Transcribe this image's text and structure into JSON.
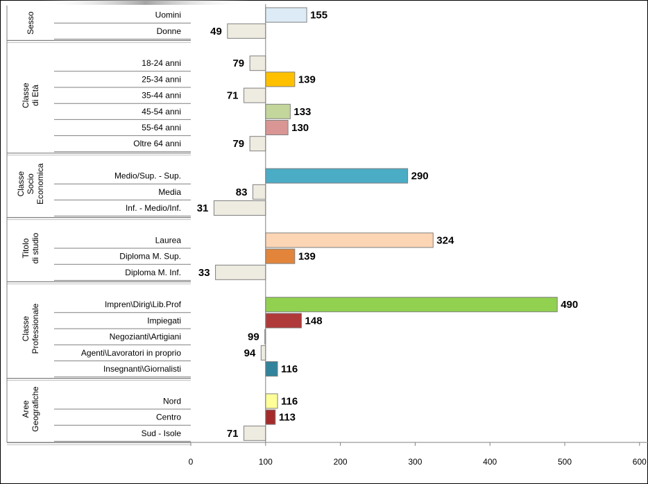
{
  "chart_data": {
    "type": "bar",
    "orientation": "horizontal",
    "baseline": 100,
    "xlim": [
      0,
      600
    ],
    "xticks": [
      "0",
      "100",
      "200",
      "300",
      "400",
      "500",
      "600"
    ],
    "grid": false,
    "groups": [
      {
        "label": "Sesso",
        "label_lines": [
          "Sesso"
        ],
        "items": [
          {
            "label": "Uomini",
            "value": 155,
            "display": "155",
            "color": "#dcebf5"
          },
          {
            "label": "Donne",
            "value": 49,
            "display": "49",
            "color": "#eeece1"
          }
        ]
      },
      {
        "label": "Classe di Età",
        "label_lines": [
          "Classe",
          "di Età"
        ],
        "items": [
          {
            "label": "18-24 anni",
            "value": 79,
            "display": "79",
            "color": "#eeece1"
          },
          {
            "label": "25-34 anni",
            "value": 139,
            "display": "139",
            "color": "#ffc000"
          },
          {
            "label": "35-44 anni",
            "value": 71,
            "display": "71",
            "color": "#eeece1"
          },
          {
            "label": "45-54 anni",
            "value": 133,
            "display": "133",
            "color": "#c3d69b"
          },
          {
            "label": "55-64 anni",
            "value": 130,
            "display": "130",
            "color": "#d99694"
          },
          {
            "label": "Oltre 64 anni",
            "value": 79,
            "display": "79",
            "color": "#eeece1"
          }
        ]
      },
      {
        "label": "Classe Socio Economica",
        "label_lines": [
          "Classe",
          "Socio",
          "Economica"
        ],
        "items": [
          {
            "label": "Medio/Sup. - Sup.",
            "value": 290,
            "display": "290",
            "color": "#4bacc6"
          },
          {
            "label": "Media",
            "value": 83,
            "display": "83",
            "color": "#eeece1"
          },
          {
            "label": "Inf. - Medio/Inf.",
            "value": 31,
            "display": "31",
            "color": "#eeece1"
          }
        ]
      },
      {
        "label": "Titolo di studio",
        "label_lines": [
          "Titolo",
          "di studio"
        ],
        "items": [
          {
            "label": "Laurea",
            "value": 324,
            "display": "324",
            "color": "#fcd5b5"
          },
          {
            "label": "Diploma M. Sup.",
            "value": 139,
            "display": "139",
            "color": "#e2853b"
          },
          {
            "label": "Diploma M. Inf.",
            "value": 33,
            "display": "33",
            "color": "#eeece1"
          }
        ]
      },
      {
        "label": "Classe Professionale",
        "label_lines": [
          "Classe",
          "Professionale"
        ],
        "items": [
          {
            "label": "Impren\\Dirig\\Lib.Prof",
            "value": 490,
            "display": "490",
            "color": "#92d050"
          },
          {
            "label": "Impiegati",
            "value": 148,
            "display": "148",
            "color": "#b03a3a"
          },
          {
            "label": "Negozianti\\Artigiani",
            "value": 99,
            "display": "99",
            "color": "#eeece1"
          },
          {
            "label": "Agenti\\Lavoratori in proprio",
            "value": 94,
            "display": "94",
            "color": "#eeece1"
          },
          {
            "label": "Insegnanti\\Giornalisti",
            "value": 116,
            "display": "116",
            "color": "#31849b"
          }
        ]
      },
      {
        "label": "Aree Geografiche",
        "label_lines": [
          "Aree",
          "Geografiche"
        ],
        "items": [
          {
            "label": "Nord",
            "value": 116,
            "display": "116",
            "color": "#ffff99"
          },
          {
            "label": "Centro",
            "value": 113,
            "display": "113",
            "color": "#a52a2a"
          },
          {
            "label": "Sud - Isole",
            "value": 71,
            "display": "71",
            "color": "#eeece1"
          }
        ]
      }
    ]
  }
}
